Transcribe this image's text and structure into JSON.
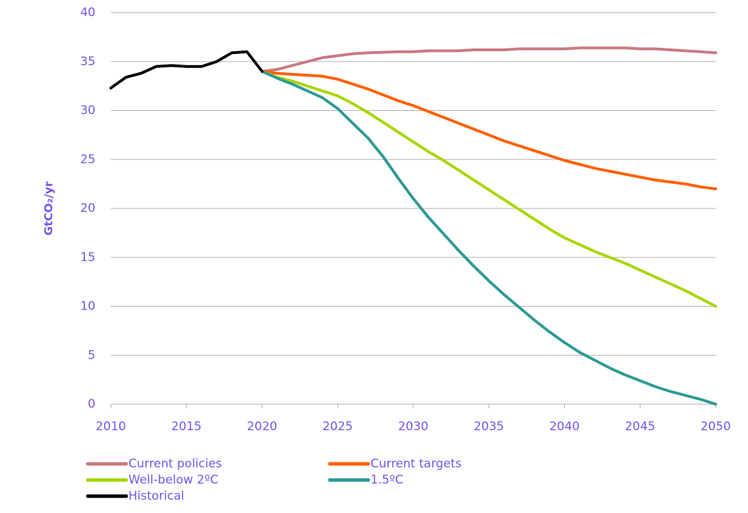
{
  "chart_data": {
    "type": "line",
    "y_label": "GtCO₂/yr",
    "x": [
      2010,
      2011,
      2012,
      2013,
      2014,
      2015,
      2016,
      2017,
      2018,
      2019,
      2020,
      2021,
      2022,
      2023,
      2024,
      2025,
      2026,
      2027,
      2028,
      2029,
      2030,
      2031,
      2032,
      2033,
      2034,
      2035,
      2036,
      2037,
      2038,
      2039,
      2040,
      2041,
      2042,
      2043,
      2044,
      2045,
      2046,
      2047,
      2048,
      2049,
      2050
    ],
    "series": [
      {
        "name": "Current policies",
        "color": "#c97a80",
        "values": [
          null,
          null,
          null,
          null,
          null,
          null,
          null,
          null,
          null,
          null,
          34.0,
          34.2,
          34.6,
          35.0,
          35.4,
          35.6,
          35.8,
          35.9,
          35.95,
          36.0,
          36.0,
          36.1,
          36.1,
          36.1,
          36.2,
          36.2,
          36.2,
          36.3,
          36.3,
          36.3,
          36.3,
          36.4,
          36.4,
          36.4,
          36.4,
          36.3,
          36.3,
          36.2,
          36.1,
          36.0,
          35.9
        ]
      },
      {
        "name": "Current targets",
        "color": "#ff6000",
        "values": [
          null,
          null,
          null,
          null,
          null,
          null,
          null,
          null,
          null,
          null,
          34.0,
          33.8,
          33.7,
          33.6,
          33.5,
          33.2,
          32.7,
          32.2,
          31.6,
          31.0,
          30.5,
          29.9,
          29.3,
          28.7,
          28.1,
          27.5,
          26.9,
          26.4,
          25.9,
          25.4,
          24.9,
          24.5,
          24.1,
          23.8,
          23.5,
          23.2,
          22.9,
          22.7,
          22.5,
          22.2,
          22.0
        ]
      },
      {
        "name": "Well-below 2ºC",
        "color": "#a8d600",
        "values": [
          null,
          null,
          null,
          null,
          null,
          null,
          null,
          null,
          null,
          null,
          34.0,
          33.4,
          33.0,
          32.5,
          32.0,
          31.5,
          30.7,
          29.8,
          28.8,
          27.8,
          26.8,
          25.8,
          24.9,
          23.9,
          22.9,
          21.9,
          20.9,
          19.9,
          18.9,
          17.9,
          17.0,
          16.3,
          15.6,
          15.0,
          14.4,
          13.7,
          13.0,
          12.3,
          11.6,
          10.8,
          10.0
        ]
      },
      {
        "name": "1.5ºC",
        "color": "#2e9a94",
        "values": [
          null,
          null,
          null,
          null,
          null,
          null,
          null,
          null,
          null,
          null,
          34.0,
          33.3,
          32.7,
          32.0,
          31.3,
          30.2,
          28.7,
          27.2,
          25.3,
          23.1,
          21.0,
          19.1,
          17.4,
          15.7,
          14.1,
          12.6,
          11.2,
          9.9,
          8.6,
          7.4,
          6.3,
          5.3,
          4.5,
          3.7,
          3.0,
          2.4,
          1.8,
          1.3,
          0.9,
          0.5,
          0.0
        ]
      },
      {
        "name": "Historical",
        "color": "#000000",
        "values": [
          32.3,
          33.4,
          33.8,
          34.5,
          34.6,
          34.5,
          34.5,
          35.0,
          35.9,
          36.0,
          34.0,
          null,
          null,
          null,
          null,
          null,
          null,
          null,
          null,
          null,
          null,
          null,
          null,
          null,
          null,
          null,
          null,
          null,
          null,
          null,
          null,
          null,
          null,
          null,
          null,
          null,
          null,
          null,
          null,
          null,
          null
        ]
      }
    ],
    "xlim": [
      2010,
      2050
    ],
    "xticks": [
      2010,
      2015,
      2020,
      2025,
      2030,
      2035,
      2040,
      2045,
      2050
    ],
    "ylim": [
      0,
      40
    ],
    "yticks": [
      0,
      5,
      10,
      15,
      20,
      25,
      30,
      35,
      40
    ],
    "grid": true,
    "legend": "bottom"
  }
}
